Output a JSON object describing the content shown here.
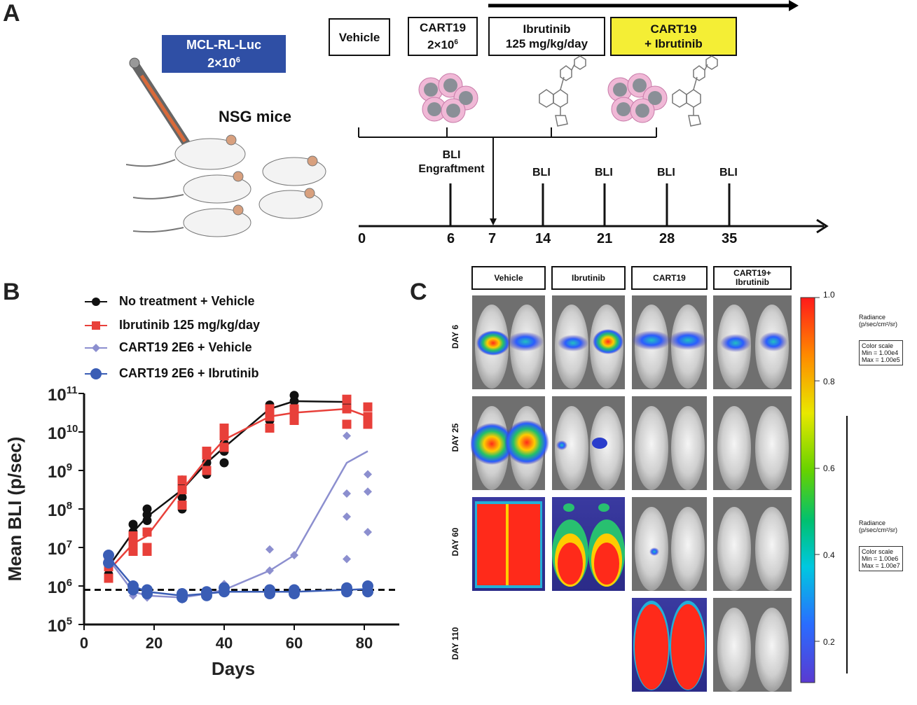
{
  "panel_a": {
    "letter": "A",
    "injection": {
      "line1": "MCL-RL-Luc",
      "line2": "2×10",
      "line2_sup": "6"
    },
    "mice_label": "NSG mice",
    "groups": [
      {
        "line1": "Vehicle",
        "line2": ""
      },
      {
        "line1": "CART19",
        "line2": "2×10",
        "line2_sup": "6"
      },
      {
        "line1": "Ibrutinib",
        "line2": "125 mg/kg/day"
      },
      {
        "line1": "CART19",
        "line2": "+ Ibrutinib"
      }
    ],
    "highlight_color": "#f4ee35",
    "bli_engraftment": {
      "line1": "BLI",
      "line2": "Engraftment"
    },
    "bli_label": "BLI",
    "timeline_ticks": [
      "0",
      "6",
      "7",
      "14",
      "21",
      "28",
      "35"
    ]
  },
  "panel_b": {
    "letter": "B",
    "legend": [
      {
        "name": "No treatment + Vehicle",
        "color": "#111111",
        "marker": "circle"
      },
      {
        "name": "Ibrutinib 125 mg/kg/day",
        "color": "#e8403a",
        "marker": "square"
      },
      {
        "name": "CART19 2E6 + Vehicle",
        "color": "#8c8fcf",
        "marker": "diamond"
      },
      {
        "name": "CART19 2E6 + Ibrutinib",
        "color": "#3a5db5",
        "marker": "circle"
      }
    ]
  },
  "chart_data": {
    "type": "line",
    "title": "",
    "xlabel": "Days",
    "ylabel": "Mean BLI (p/sec)",
    "xlim": [
      0,
      90
    ],
    "ylim_log10": [
      5,
      11
    ],
    "y_scale": "log",
    "x_ticks": [
      "0",
      "20",
      "40",
      "60",
      "80"
    ],
    "y_tick_exponents": [
      "5",
      "6",
      "7",
      "8",
      "9",
      "10",
      "11"
    ],
    "y_tick_base": "10",
    "threshold_log10": 5.9,
    "series": [
      {
        "name": "No treatment + Vehicle",
        "color": "#111111",
        "marker": "circle",
        "x": [
          7,
          14,
          18,
          28,
          35,
          40,
          53,
          60,
          75
        ],
        "y_log10": [
          6.5,
          7.4,
          7.8,
          8.5,
          9.2,
          9.6,
          10.6,
          10.8,
          10.78
        ],
        "points": [
          [
            7,
            6.3
          ],
          [
            7,
            6.6
          ],
          [
            7,
            6.7
          ],
          [
            14,
            7.2
          ],
          [
            14,
            7.4
          ],
          [
            14,
            7.6
          ],
          [
            18,
            7.7
          ],
          [
            18,
            7.85
          ],
          [
            18,
            8.0
          ],
          [
            28,
            8.0
          ],
          [
            28,
            8.3
          ],
          [
            28,
            8.6
          ],
          [
            28,
            8.75
          ],
          [
            35,
            8.9
          ],
          [
            35,
            9.2
          ],
          [
            35,
            9.4
          ],
          [
            40,
            9.2
          ],
          [
            40,
            9.5
          ],
          [
            40,
            9.7
          ],
          [
            40,
            9.85
          ],
          [
            53,
            10.3
          ],
          [
            53,
            10.5
          ],
          [
            53,
            10.7
          ],
          [
            60,
            10.6
          ],
          [
            60,
            10.8
          ],
          [
            60,
            10.95
          ],
          [
            75,
            10.7
          ],
          [
            75,
            10.8
          ]
        ]
      },
      {
        "name": "Ibrutinib 125 mg/kg/day",
        "color": "#e8403a",
        "marker": "square",
        "x": [
          7,
          14,
          18,
          28,
          35,
          40,
          53,
          60,
          75,
          81
        ],
        "y_log10": [
          6.4,
          7.1,
          7.3,
          8.5,
          9.3,
          9.8,
          10.4,
          10.5,
          10.6,
          10.4
        ],
        "points": [
          [
            7,
            6.2
          ],
          [
            7,
            6.5
          ],
          [
            7,
            6.7
          ],
          [
            14,
            6.9
          ],
          [
            14,
            7.1
          ],
          [
            14,
            7.3
          ],
          [
            18,
            6.9
          ],
          [
            18,
            7.0
          ],
          [
            18,
            7.4
          ],
          [
            28,
            8.1
          ],
          [
            28,
            8.5
          ],
          [
            28,
            8.75
          ],
          [
            35,
            9.0
          ],
          [
            35,
            9.4
          ],
          [
            35,
            9.5
          ],
          [
            40,
            9.6
          ],
          [
            40,
            9.9
          ],
          [
            40,
            10.1
          ],
          [
            53,
            10.1
          ],
          [
            53,
            10.4
          ],
          [
            53,
            10.6
          ],
          [
            60,
            10.3
          ],
          [
            60,
            10.5
          ],
          [
            60,
            10.6
          ],
          [
            75,
            10.2
          ],
          [
            75,
            10.6
          ],
          [
            75,
            10.85
          ],
          [
            81,
            10.2
          ],
          [
            81,
            10.4
          ],
          [
            81,
            10.65
          ]
        ]
      },
      {
        "name": "CART19 2E6 + Vehicle",
        "color": "#8c8fcf",
        "marker": "diamond",
        "x": [
          7,
          14,
          18,
          28,
          35,
          40,
          53,
          60,
          75,
          81
        ],
        "y_log10": [
          6.7,
          5.85,
          5.75,
          5.7,
          5.8,
          5.9,
          6.4,
          6.8,
          9.2,
          9.5
        ],
        "points": [
          [
            7,
            6.6
          ],
          [
            7,
            6.8
          ],
          [
            14,
            5.75
          ],
          [
            14,
            5.9
          ],
          [
            18,
            5.7
          ],
          [
            18,
            5.8
          ],
          [
            28,
            5.65
          ],
          [
            28,
            5.75
          ],
          [
            35,
            5.75
          ],
          [
            35,
            5.85
          ],
          [
            40,
            5.9
          ],
          [
            40,
            6.05
          ],
          [
            53,
            6.4
          ],
          [
            53,
            6.95
          ],
          [
            60,
            6.8
          ],
          [
            75,
            6.7
          ],
          [
            75,
            7.8
          ],
          [
            75,
            8.4
          ],
          [
            75,
            9.9
          ],
          [
            81,
            7.4
          ],
          [
            81,
            8.45
          ],
          [
            81,
            8.9
          ]
        ]
      },
      {
        "name": "CART19 2E6 + Ibrutinib",
        "color": "#3a5db5",
        "marker": "circle",
        "x": [
          7,
          14,
          18,
          28,
          35,
          40,
          53,
          60,
          75,
          81
        ],
        "y_log10": [
          6.75,
          6.0,
          5.85,
          5.75,
          5.8,
          5.85,
          5.85,
          5.85,
          5.9,
          5.92
        ],
        "points": [
          [
            7,
            6.6
          ],
          [
            7,
            6.8
          ],
          [
            14,
            5.9
          ],
          [
            14,
            6.0
          ],
          [
            18,
            5.8
          ],
          [
            18,
            5.9
          ],
          [
            28,
            5.7
          ],
          [
            28,
            5.8
          ],
          [
            35,
            5.75
          ],
          [
            35,
            5.85
          ],
          [
            40,
            5.85
          ],
          [
            40,
            5.95
          ],
          [
            53,
            5.8
          ],
          [
            53,
            5.9
          ],
          [
            60,
            5.8
          ],
          [
            60,
            5.9
          ],
          [
            75,
            5.85
          ],
          [
            75,
            5.95
          ],
          [
            81,
            5.85
          ],
          [
            81,
            6.0
          ]
        ]
      }
    ]
  },
  "panel_c": {
    "letter": "C",
    "columns": [
      "Vehicle",
      "Ibrutinib",
      "CART19",
      "CART19+\nIbrutinib"
    ],
    "days": [
      "DAY 6",
      "DAY 25",
      "DAY 60",
      "DAY 110"
    ],
    "colorbar_ticks": [
      "1.0",
      "0.8",
      "0.6",
      "0.4",
      "0.2"
    ],
    "scale1": {
      "title1": "Radiance",
      "title2": "(p/sec/cm²/sr)",
      "box_title": "Color scale",
      "min": "Min = 1.00e4",
      "max": "Max = 1.00e5"
    },
    "scale2": {
      "title1": "Radiance",
      "title2": "(p/sec/cm²/sr)",
      "box_title": "Color scale",
      "min": "Min = 1.00e6",
      "max": "Max = 1.00e7"
    }
  }
}
